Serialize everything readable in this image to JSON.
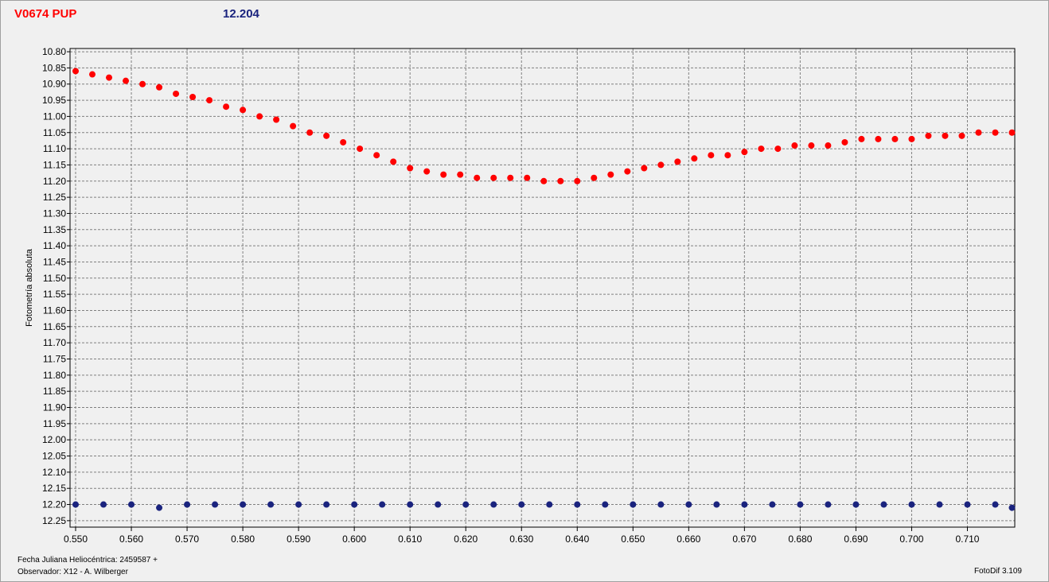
{
  "header": {
    "star_name": "V0674 PUP",
    "comparison_magnitude": "12.204"
  },
  "footer": {
    "date_label": "Fecha Juliana Heliocéntrica: 2459587 +",
    "observer_label": "Observador: X12 - A. Wilberger",
    "software_label": "FotoDif 3.109"
  },
  "colors": {
    "variable_series": "#ff0000",
    "check_series": "#1a237e",
    "grid": "#808080",
    "plot_background": "#f0f0f0"
  },
  "chart_data": {
    "type": "scatter",
    "title": "V0674 PUP",
    "xlabel": "",
    "ylabel": "Fotometría absoluta",
    "xlim": [
      0.549,
      0.7185
    ],
    "ylim": [
      10.79,
      12.27
    ],
    "y_inverted": true,
    "grid": true,
    "x_ticks": [
      "0.550",
      "0.560",
      "0.570",
      "0.580",
      "0.590",
      "0.600",
      "0.610",
      "0.620",
      "0.630",
      "0.640",
      "0.650",
      "0.660",
      "0.670",
      "0.680",
      "0.690",
      "0.700",
      "0.710"
    ],
    "y_ticks": [
      "10.80",
      "10.85",
      "10.90",
      "10.95",
      "11.00",
      "11.05",
      "11.10",
      "11.15",
      "11.20",
      "11.25",
      "11.30",
      "11.35",
      "11.40",
      "11.45",
      "11.50",
      "11.55",
      "11.60",
      "11.65",
      "11.70",
      "11.75",
      "11.80",
      "11.85",
      "11.90",
      "11.95",
      "12.00",
      "12.05",
      "12.10",
      "12.15",
      "12.20",
      "12.25"
    ],
    "series": [
      {
        "color": "#ff0000",
        "x": [
          0.55,
          0.553,
          0.556,
          0.559,
          0.562,
          0.565,
          0.568,
          0.571,
          0.574,
          0.577,
          0.58,
          0.583,
          0.586,
          0.589,
          0.592,
          0.595,
          0.598,
          0.601,
          0.604,
          0.607,
          0.61,
          0.613,
          0.616,
          0.619,
          0.622,
          0.625,
          0.628,
          0.631,
          0.634,
          0.637,
          0.64,
          0.643,
          0.646,
          0.649,
          0.652,
          0.655,
          0.658,
          0.661,
          0.664,
          0.667,
          0.67,
          0.673,
          0.676,
          0.679,
          0.682,
          0.685,
          0.688,
          0.691,
          0.694,
          0.697,
          0.7,
          0.703,
          0.706,
          0.709,
          0.712,
          0.715,
          0.718
        ],
        "y": [
          10.86,
          10.87,
          10.88,
          10.89,
          10.9,
          10.91,
          10.93,
          10.94,
          10.95,
          10.97,
          10.98,
          11.0,
          11.01,
          11.03,
          11.05,
          11.06,
          11.08,
          11.1,
          11.12,
          11.14,
          11.16,
          11.17,
          11.18,
          11.18,
          11.19,
          11.19,
          11.19,
          11.19,
          11.2,
          11.2,
          11.2,
          11.19,
          11.18,
          11.17,
          11.16,
          11.15,
          11.14,
          11.13,
          11.12,
          11.12,
          11.11,
          11.1,
          11.1,
          11.09,
          11.09,
          11.09,
          11.08,
          11.07,
          11.07,
          11.07,
          11.07,
          11.06,
          11.06,
          11.06,
          11.05,
          11.05,
          11.05
        ]
      },
      {
        "color": "#1a237e",
        "x": [
          0.55,
          0.555,
          0.56,
          0.565,
          0.57,
          0.575,
          0.58,
          0.585,
          0.59,
          0.595,
          0.6,
          0.605,
          0.61,
          0.615,
          0.62,
          0.625,
          0.63,
          0.635,
          0.64,
          0.645,
          0.65,
          0.655,
          0.66,
          0.665,
          0.67,
          0.675,
          0.68,
          0.685,
          0.69,
          0.695,
          0.7,
          0.705,
          0.71,
          0.715,
          0.718
        ],
        "y": [
          12.2,
          12.2,
          12.2,
          12.21,
          12.2,
          12.2,
          12.2,
          12.2,
          12.2,
          12.2,
          12.2,
          12.2,
          12.2,
          12.2,
          12.2,
          12.2,
          12.2,
          12.2,
          12.2,
          12.2,
          12.2,
          12.2,
          12.2,
          12.2,
          12.2,
          12.2,
          12.2,
          12.2,
          12.2,
          12.2,
          12.2,
          12.2,
          12.2,
          12.2,
          12.21
        ]
      }
    ]
  }
}
